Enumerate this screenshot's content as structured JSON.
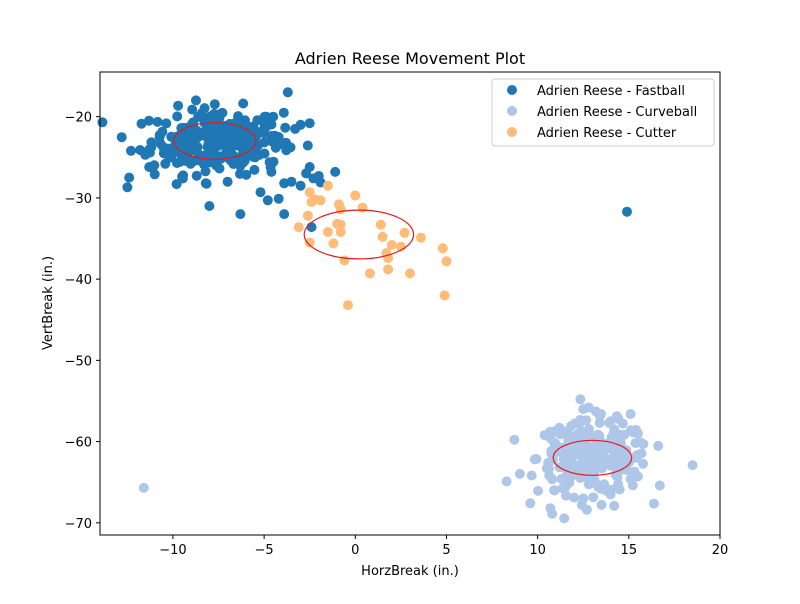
{
  "chart_data": {
    "type": "scatter",
    "title": "Adrien Reese Movement Plot",
    "xlabel": "HorzBreak (in.)",
    "ylabel": "VertBreak (in.)",
    "xlim": [
      -14,
      20
    ],
    "ylim": [
      -71.5,
      -14.5
    ],
    "xticks": [
      -10,
      -5,
      0,
      5,
      10,
      15,
      20
    ],
    "yticks": [
      -20,
      -30,
      -40,
      -50,
      -60,
      -70
    ],
    "xtick_labels": [
      "−10",
      "−5",
      "0",
      "5",
      "10",
      "15",
      "20"
    ],
    "ytick_labels": [
      "−20",
      "−30",
      "−40",
      "−50",
      "−60",
      "−70"
    ],
    "grid": false,
    "legend_position": "top-right",
    "series": [
      {
        "name": "Adrien Reese - Fastball",
        "color": "#1f77b4",
        "center": [
          -7.6,
          -23.0
        ],
        "spread": [
          1.8,
          2.0
        ],
        "count": 260,
        "points": [
          [
            -3.7,
            -17.0
          ],
          [
            -4.5,
            -20.0
          ],
          [
            -3.3,
            -21.5
          ],
          [
            -2.5,
            -20.8
          ],
          [
            -3.0,
            -21.0
          ],
          [
            -12.3,
            -24.2
          ],
          [
            -12.4,
            -27.5
          ],
          [
            -12.5,
            -28.7
          ],
          [
            -11.3,
            -26.2
          ],
          [
            -11.0,
            -27.1
          ],
          [
            -9.8,
            -28.3
          ],
          [
            -8.2,
            -28.2
          ],
          [
            -7.0,
            -28.0
          ],
          [
            -8.0,
            -31.0
          ],
          [
            -6.3,
            -32.0
          ],
          [
            -5.2,
            -29.3
          ],
          [
            -4.8,
            -30.3
          ],
          [
            -4.2,
            -30.1
          ],
          [
            -3.9,
            -28.2
          ],
          [
            -3.5,
            -28.0
          ],
          [
            -3.0,
            -28.5
          ],
          [
            -3.9,
            -32.0
          ],
          [
            -2.5,
            -26.2
          ],
          [
            -2.3,
            -27.6
          ],
          [
            -2.0,
            -27.3
          ],
          [
            -1.9,
            -28.1
          ],
          [
            -1.1,
            -26.8
          ],
          [
            -2.4,
            -33.6
          ],
          [
            -6.5,
            -25.2
          ],
          [
            -4.7,
            -25.6
          ],
          [
            -4.6,
            -26.8
          ],
          [
            -5.5,
            -25.0
          ],
          [
            -6.0,
            -21.0
          ],
          [
            -5.0,
            -22.0
          ],
          [
            -4.2,
            -22.5
          ],
          [
            -3.8,
            -23.2
          ],
          [
            14.9,
            -31.7
          ],
          [
            -9.5,
            -27.4
          ],
          [
            -10.5,
            -24.5
          ],
          [
            -11.8,
            -24.1
          ]
        ]
      },
      {
        "name": "Adrien Reese - Curveball",
        "color": "#aec7e8",
        "center": [
          13.0,
          -62.0
        ],
        "spread": [
          1.5,
          2.2
        ],
        "count": 220,
        "points": [
          [
            -11.6,
            -65.7
          ],
          [
            8.3,
            -64.9
          ],
          [
            10.7,
            -68.2
          ],
          [
            10.8,
            -68.9
          ],
          [
            10.9,
            -66.0
          ],
          [
            10.5,
            -63.3
          ],
          [
            11.0,
            -60.3
          ],
          [
            11.2,
            -58.3
          ],
          [
            12.5,
            -56.0
          ],
          [
            12.8,
            -55.8
          ],
          [
            13.2,
            -56.3
          ],
          [
            14.0,
            -57.5
          ],
          [
            14.2,
            -58.5
          ],
          [
            15.1,
            -56.6
          ],
          [
            15.5,
            -59.0
          ],
          [
            15.8,
            -60.3
          ],
          [
            16.7,
            -65.4
          ],
          [
            18.5,
            -62.9
          ],
          [
            15.1,
            -64.6
          ],
          [
            15.5,
            -64.3
          ],
          [
            14.9,
            -63.5
          ],
          [
            14.5,
            -65.9
          ],
          [
            14.2,
            -67.9
          ],
          [
            13.5,
            -67.8
          ],
          [
            12.5,
            -67.0
          ],
          [
            12.0,
            -66.9
          ],
          [
            11.5,
            -65.7
          ],
          [
            11.3,
            -64.6
          ],
          [
            12.7,
            -68.4
          ],
          [
            14.0,
            -66.5
          ]
        ]
      },
      {
        "name": "Adrien Reese - Cutter",
        "color": "#ffbb78",
        "points": [
          [
            0.0,
            -29.7
          ],
          [
            -1.5,
            -28.5
          ],
          [
            -2.2,
            -30.2
          ],
          [
            -2.5,
            -29.3
          ],
          [
            -2.4,
            -30.5
          ],
          [
            -1.9,
            -30.3
          ],
          [
            -0.9,
            -30.8
          ],
          [
            -0.8,
            -31.4
          ],
          [
            0.4,
            -31.2
          ],
          [
            -2.6,
            -32.2
          ],
          [
            -3.1,
            -33.6
          ],
          [
            -1.0,
            -33.2
          ],
          [
            -0.8,
            -33.3
          ],
          [
            -0.8,
            -34.2
          ],
          [
            -1.5,
            -34.2
          ],
          [
            -2.5,
            -35.5
          ],
          [
            -1.2,
            -35.6
          ],
          [
            1.4,
            -33.3
          ],
          [
            1.5,
            -34.8
          ],
          [
            2.0,
            -35.8
          ],
          [
            2.5,
            -36.0
          ],
          [
            2.7,
            -34.3
          ],
          [
            3.6,
            -34.9
          ],
          [
            1.7,
            -36.8
          ],
          [
            1.8,
            -37.4
          ],
          [
            -0.6,
            -37.7
          ],
          [
            0.8,
            -39.3
          ],
          [
            1.8,
            -38.8
          ],
          [
            3.0,
            -39.3
          ],
          [
            4.8,
            -36.2
          ],
          [
            5.0,
            -37.8
          ],
          [
            4.9,
            -42.0
          ],
          [
            -0.4,
            -43.2
          ]
        ]
      }
    ],
    "ellipses": [
      {
        "series": "Adrien Reese - Fastball",
        "center": [
          -7.7,
          -23.0
        ],
        "width": 4.5,
        "height": 4.5,
        "color": "#e41a1c"
      },
      {
        "series": "Adrien Reese - Cutter",
        "center": [
          0.2,
          -34.5
        ],
        "width": 6.0,
        "height": 6.0,
        "color": "#e41a1c"
      },
      {
        "series": "Adrien Reese - Curveball",
        "center": [
          13.0,
          -62.0
        ],
        "width": 4.3,
        "height": 4.3,
        "color": "#e41a1c"
      }
    ]
  }
}
